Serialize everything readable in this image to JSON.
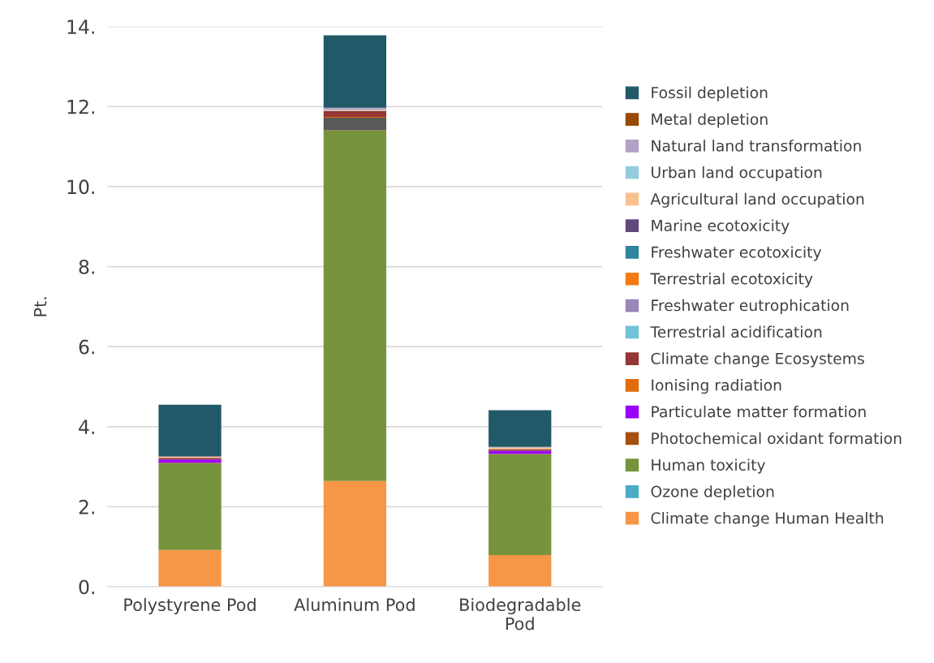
{
  "chart_data": {
    "type": "bar",
    "stacked": true,
    "ylabel": "Pt.",
    "categories": [
      "Polystyrene Pod",
      "Aluminum Pod",
      "Biodegradable\nPod"
    ],
    "ylim": [
      0,
      14
    ],
    "yticks": [
      {
        "value": 0,
        "label": "0."
      },
      {
        "value": 2,
        "label": "2."
      },
      {
        "value": 4,
        "label": "4."
      },
      {
        "value": 6,
        "label": "6."
      },
      {
        "value": 8,
        "label": "8."
      },
      {
        "value": 10,
        "label": "10."
      },
      {
        "value": 12,
        "label": "12."
      },
      {
        "value": 14,
        "label": "14."
      }
    ],
    "grid": "y",
    "legend": "right",
    "series": [
      {
        "name": "Climate change Human Health",
        "color": "#f79646",
        "values": [
          0.92,
          2.64,
          0.79
        ]
      },
      {
        "name": "Ozone depletion",
        "color": "#4bacc6",
        "values": [
          0,
          0,
          0
        ]
      },
      {
        "name": "Human toxicity",
        "color": "#77933c",
        "values": [
          2.17,
          8.76,
          2.52
        ]
      },
      {
        "name": "Photochemical oxidant formation",
        "color": "#a5500f",
        "values": [
          0.01,
          0.01,
          0.01
        ]
      },
      {
        "name": "Particulate matter formation",
        "color": "#9900ff",
        "colors": [
          "#9900ff",
          "#595959",
          "#9900ff"
        ],
        "values": [
          0.08,
          0.31,
          0.08
        ]
      },
      {
        "name": "Ionising radiation",
        "color": "#e26b0a",
        "values": [
          0,
          0.02,
          0
        ]
      },
      {
        "name": "Climate change Ecosystems",
        "color": "#953735",
        "values": [
          0.04,
          0.15,
          0.04
        ]
      },
      {
        "name": "Terrestrial acidification",
        "color": "#72c2d8",
        "values": [
          0,
          0.01,
          null
        ]
      },
      {
        "name": "Freshwater eutrophication",
        "color": "#9a86b8",
        "values": [
          0,
          0,
          0
        ]
      },
      {
        "name": "Terrestrial ecotoxicity",
        "color": "#f47b14",
        "values": [
          0,
          0,
          0
        ]
      },
      {
        "name": "Freshwater ecotoxicity",
        "color": "#31859c",
        "values": [
          0,
          0,
          0
        ]
      },
      {
        "name": "Marine ecotoxicity",
        "color": "#604a7b",
        "values": [
          0,
          0,
          0
        ]
      },
      {
        "name": "Agricultural land occupation",
        "color": "#fac090",
        "values": [
          0.02,
          0.02,
          0.03
        ]
      },
      {
        "name": "Urban land occupation",
        "color": "#93cddd",
        "values": [
          0,
          null,
          0.01
        ]
      },
      {
        "name": "Natural land transformation",
        "color": "#b3a2c7",
        "values": [
          0.01,
          0.05,
          0.01
        ]
      },
      {
        "name": "Metal depletion",
        "color": "#984807",
        "values": [
          0.01,
          null,
          0.01
        ]
      },
      {
        "name": "Fossil depletion",
        "color": "#215968",
        "values": [
          1.29,
          1.81,
          0.91
        ]
      }
    ]
  }
}
